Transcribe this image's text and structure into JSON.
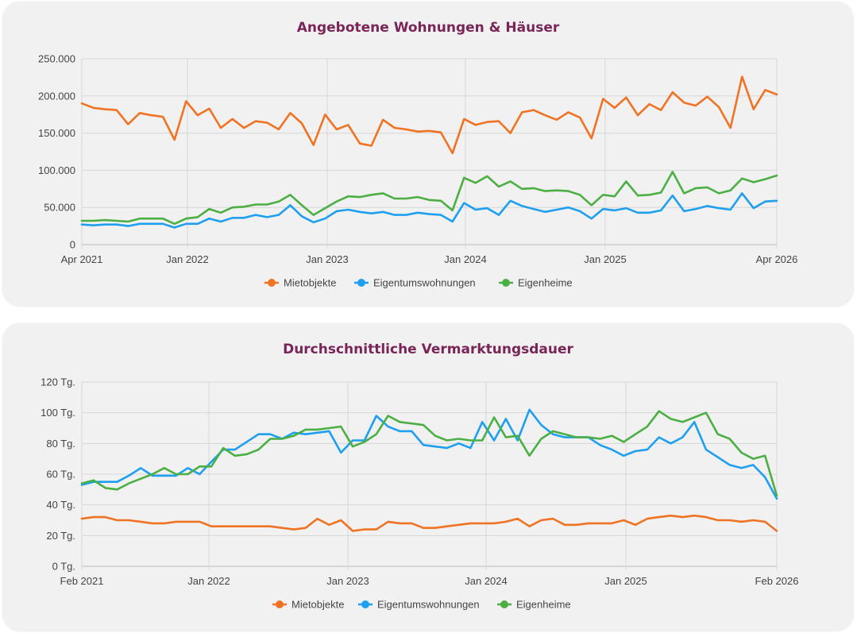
{
  "colors": {
    "Mietobjekte": "#f07323",
    "Eigentumswohnungen": "#1e9ff0",
    "Eigenheime": "#4caf43",
    "title": "#7a2558"
  },
  "chart_data": [
    {
      "type": "line",
      "title": "Angebotene Wohnungen & Häuser",
      "x_start": "2021-04",
      "x_ticks": [
        "Apr 2021",
        "Jan 2022",
        "Jan 2023",
        "Jan 2024",
        "Jan 2025",
        "Apr 2026"
      ],
      "y_ticks": [
        "0",
        "50.000",
        "100.000",
        "150.000",
        "200.000",
        "250.000"
      ],
      "ylim": [
        0,
        250000
      ],
      "grid": true,
      "legend": "bottom",
      "series": [
        {
          "name": "Mietobjekte",
          "values": [
            190000,
            184000,
            182000,
            181000,
            162000,
            177000,
            174000,
            172000,
            141000,
            193000,
            174000,
            183000,
            157000,
            169000,
            157000,
            166000,
            164000,
            155000,
            177000,
            163000,
            134000,
            175000,
            155000,
            161000,
            136000,
            133000,
            168000,
            157000,
            155000,
            152000,
            153000,
            151000,
            123000,
            169000,
            161000,
            165000,
            166000,
            150000,
            178000,
            181000,
            174000,
            168000,
            178000,
            171000,
            143000,
            196000,
            184000,
            198000,
            174000,
            189000,
            181000,
            205000,
            191000,
            187000,
            199000,
            185000,
            157000,
            226000,
            182000,
            208000,
            202000
          ]
        },
        {
          "name": "Eigentumswohnungen",
          "values": [
            27000,
            26000,
            27000,
            27000,
            25000,
            28000,
            28000,
            28000,
            23000,
            28000,
            28000,
            35000,
            31000,
            36000,
            36000,
            40000,
            37000,
            40000,
            53000,
            38000,
            30000,
            35000,
            45000,
            47000,
            44000,
            42000,
            44000,
            40000,
            40000,
            43000,
            41000,
            40000,
            31000,
            56000,
            47000,
            49000,
            40000,
            59000,
            52000,
            48000,
            44000,
            47000,
            50000,
            45000,
            35000,
            48000,
            46000,
            49000,
            43000,
            43000,
            46000,
            66000,
            45000,
            48000,
            52000,
            49000,
            47000,
            69000,
            49000,
            58000,
            59000
          ]
        },
        {
          "name": "Eigenheime",
          "values": [
            32000,
            32000,
            33000,
            32000,
            31000,
            35000,
            35000,
            35000,
            28000,
            35000,
            37000,
            48000,
            43000,
            50000,
            51000,
            54000,
            54000,
            58000,
            67000,
            53000,
            40000,
            49000,
            58000,
            65000,
            64000,
            67000,
            69000,
            62000,
            62000,
            64000,
            60000,
            59000,
            46000,
            90000,
            83000,
            92000,
            78000,
            85000,
            75000,
            76000,
            72000,
            73000,
            72000,
            67000,
            53000,
            67000,
            65000,
            85000,
            66000,
            67000,
            70000,
            98000,
            69000,
            76000,
            77000,
            69000,
            73000,
            89000,
            84000,
            88000,
            93000
          ]
        }
      ]
    },
    {
      "type": "line",
      "title": "Durchschnittliche Vermarktungsdauer",
      "x_start": "2021-02",
      "x_ticks": [
        "Feb 2021",
        "Jan 2022",
        "Jan 2023",
        "Jan 2024",
        "Jan 2025",
        "Feb 2026"
      ],
      "y_ticks": [
        "0 Tg.",
        "20 Tg.",
        "40 Tg.",
        "60 Tg.",
        "80 Tg.",
        "100 Tg.",
        "120 Tg."
      ],
      "ylim": [
        0,
        120
      ],
      "grid": true,
      "legend": "bottom",
      "series": [
        {
          "name": "Mietobjekte",
          "values": [
            31,
            32,
            32,
            30,
            30,
            29,
            28,
            28,
            29,
            29,
            29,
            26,
            26,
            26,
            26,
            26,
            26,
            25,
            24,
            25,
            31,
            27,
            30,
            23,
            24,
            24,
            29,
            28,
            28,
            25,
            25,
            26,
            27,
            28,
            28,
            28,
            29,
            31,
            26,
            30,
            31,
            27,
            27,
            28,
            28,
            28,
            30,
            27,
            31,
            32,
            33,
            32,
            33,
            32,
            30,
            30,
            29,
            30,
            29,
            23
          ]
        },
        {
          "name": "Eigentumswohnungen",
          "values": [
            53,
            55,
            55,
            55,
            59,
            64,
            59,
            59,
            59,
            64,
            60,
            68,
            76,
            76,
            81,
            86,
            86,
            83,
            87,
            86,
            87,
            88,
            74,
            82,
            82,
            98,
            91,
            88,
            88,
            79,
            78,
            77,
            80,
            77,
            94,
            82,
            96,
            82,
            102,
            92,
            86,
            84,
            84,
            84,
            79,
            76,
            72,
            75,
            76,
            84,
            80,
            84,
            94,
            76,
            71,
            66,
            64,
            66,
            58,
            44
          ]
        },
        {
          "name": "Eigenheime",
          "values": [
            54,
            56,
            51,
            50,
            54,
            57,
            60,
            64,
            60,
            60,
            65,
            65,
            77,
            72,
            73,
            76,
            83,
            83,
            85,
            89,
            89,
            90,
            91,
            78,
            81,
            86,
            98,
            94,
            93,
            92,
            85,
            82,
            83,
            82,
            82,
            97,
            84,
            85,
            72,
            83,
            88,
            86,
            84,
            84,
            83,
            85,
            81,
            86,
            91,
            101,
            96,
            94,
            97,
            100,
            86,
            83,
            74,
            70,
            72,
            46
          ]
        }
      ]
    }
  ]
}
